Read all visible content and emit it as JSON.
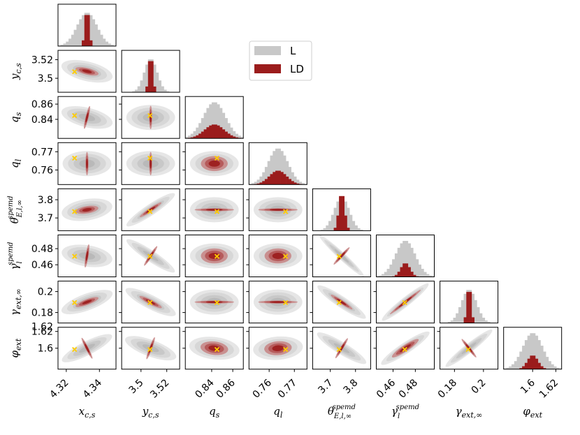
{
  "chart_data": {
    "type": "corner",
    "series": [
      {
        "name": "L",
        "color": "#c8c8c8"
      },
      {
        "name": "LD",
        "color": "#9b1c1c"
      }
    ],
    "truth_marker_color": "#ffcc00",
    "legend": {
      "position": "upper-middle",
      "entries": [
        "L",
        "LD"
      ]
    },
    "parameters": [
      {
        "name": "x_c_s",
        "label": "x",
        "sub": "c,s",
        "sup": "",
        "range": [
          4.315,
          4.35
        ],
        "ticks": [
          4.32,
          4.34
        ],
        "tick_labels": [
          "4.32",
          "4.34"
        ],
        "truth": 4.325
      },
      {
        "name": "y_c_s",
        "label": "y",
        "sub": "c,s",
        "sup": "",
        "range": [
          3.485,
          3.53
        ],
        "ticks": [
          3.5,
          3.52
        ],
        "tick_labels": [
          "3.5",
          "3.52"
        ],
        "truth": 3.507
      },
      {
        "name": "q_s",
        "label": "q",
        "sub": "s",
        "sup": "",
        "range": [
          0.815,
          0.87
        ],
        "ticks": [
          0.84,
          0.86
        ],
        "tick_labels": [
          "0.84",
          "0.86"
        ],
        "truth": 0.845
      },
      {
        "name": "q_l",
        "label": "q",
        "sub": "l",
        "sup": "",
        "range": [
          0.752,
          0.775
        ],
        "ticks": [
          0.76,
          0.77
        ],
        "tick_labels": [
          "0.76",
          "0.77"
        ],
        "truth": 0.7665
      },
      {
        "name": "theta_E",
        "label": "θ",
        "sub": "E,l,∞",
        "sup": "spemd",
        "range": [
          3.63,
          3.86
        ],
        "ticks": [
          3.7,
          3.8
        ],
        "tick_labels": [
          "3.7",
          "3.8"
        ],
        "truth": 3.735
      },
      {
        "name": "gamma_l",
        "label": "γ",
        "sub": "l",
        "sup": "spemd",
        "range": [
          0.445,
          0.497
        ],
        "ticks": [
          0.46,
          0.48
        ],
        "tick_labels": [
          "0.46",
          "0.48"
        ],
        "truth": 0.4705
      },
      {
        "name": "gamma_ext",
        "label": "γ",
        "sub": "ext,∞",
        "sup": "",
        "range": [
          0.17,
          0.21
        ],
        "ticks": [
          0.18,
          0.2
        ],
        "tick_labels": [
          "0.18",
          "0.2"
        ],
        "truth": 0.1895
      },
      {
        "name": "phi_ext",
        "label": "φ",
        "sub": "ext",
        "sup": "",
        "range": [
          1.575,
          1.625
        ],
        "ticks": [
          1.6,
          1.62
        ],
        "tick_labels": [
          "1.6",
          "1.62"
        ],
        "truth": 1.5985
      }
    ],
    "correlations": {
      "1,0": -0.3,
      "2,0": -0.3,
      "2,1": 0.0,
      "3,0": 0.0,
      "3,1": 0.0,
      "3,2": 0.0,
      "4,0": 0.2,
      "4,1": 0.75,
      "4,2": 0.0,
      "4,3": 0.0,
      "5,0": -0.2,
      "5,1": -0.75,
      "5,2": 0.0,
      "5,3": 0.0,
      "5,4": -0.95,
      "6,0": 0.45,
      "6,1": -0.6,
      "6,2": 0.0,
      "6,3": 0.0,
      "6,4": -0.75,
      "6,5": 0.85,
      "7,0": 0.6,
      "7,1": -0.45,
      "7,2": -0.15,
      "7,3": 0.1,
      "7,4": -0.7,
      "7,5": 0.75,
      "7,6": 0.85
    },
    "marginals": {
      "L_sigma_frac": [
        0.17,
        0.11,
        0.19,
        0.17,
        0.13,
        0.17,
        0.13,
        0.17
      ],
      "LD_sigma_frac": [
        0.035,
        0.035,
        0.17,
        0.15,
        0.05,
        0.08,
        0.035,
        0.09
      ]
    },
    "extra_ticks": {
      "y_axis_row_7": {
        "value": 1.62,
        "label": "1.62"
      }
    }
  }
}
